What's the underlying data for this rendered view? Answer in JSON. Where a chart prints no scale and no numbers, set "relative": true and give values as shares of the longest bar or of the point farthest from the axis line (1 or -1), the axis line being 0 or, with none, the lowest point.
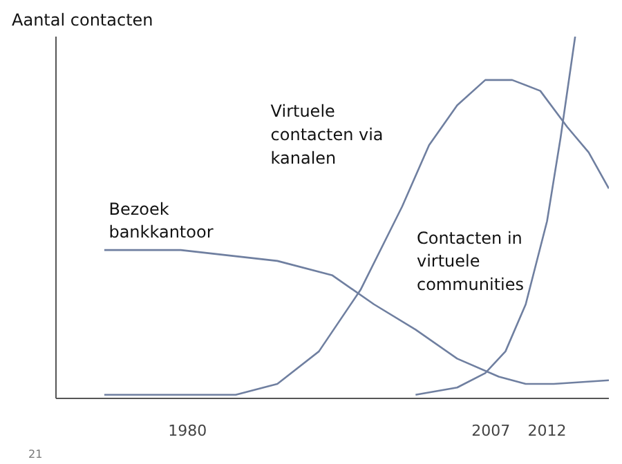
{
  "chart_data": {
    "type": "line",
    "relative": true,
    "ylabel": "Aantal contacten",
    "annotations": [
      "21"
    ],
    "xlim": [
      1968.3,
      2017.5
    ],
    "xticks": [
      1980,
      2007,
      2012
    ],
    "grid": false,
    "marker": "none",
    "line_style": "solid",
    "series": [
      {
        "name": "Bezoek bankkantoor",
        "color": "#6f7fa0",
        "x": [
          1972.6,
          1979.4,
          1988.0,
          1992.9,
          1996.6,
          2000.3,
          2004.0,
          2007.7,
          2010.1,
          2012.6,
          2017.5
        ],
        "values": [
          0.41,
          0.41,
          0.38,
          0.34,
          0.26,
          0.19,
          0.11,
          0.06,
          0.04,
          0.04,
          0.05
        ]
      },
      {
        "name": "Virtuele contacten via kanalen",
        "color": "#6f7fa0",
        "x": [
          1972.6,
          1980.6,
          1984.3,
          1988.0,
          1991.7,
          1995.4,
          1999.1,
          2001.5,
          2004.0,
          2006.5,
          2008.9,
          2011.4,
          2013.8,
          2015.7,
          2017.5
        ],
        "values": [
          0.01,
          0.01,
          0.01,
          0.04,
          0.13,
          0.3,
          0.53,
          0.7,
          0.81,
          0.88,
          0.88,
          0.85,
          0.75,
          0.68,
          0.58
        ]
      },
      {
        "name": "Contacten in virtuele communities",
        "color": "#6f7fa0",
        "x": [
          2000.3,
          2004.0,
          2006.5,
          2008.3,
          2010.1,
          2012.0,
          2013.2,
          2014.5
        ],
        "values": [
          0.01,
          0.03,
          0.07,
          0.13,
          0.26,
          0.49,
          0.72,
          1.0
        ]
      }
    ]
  }
}
